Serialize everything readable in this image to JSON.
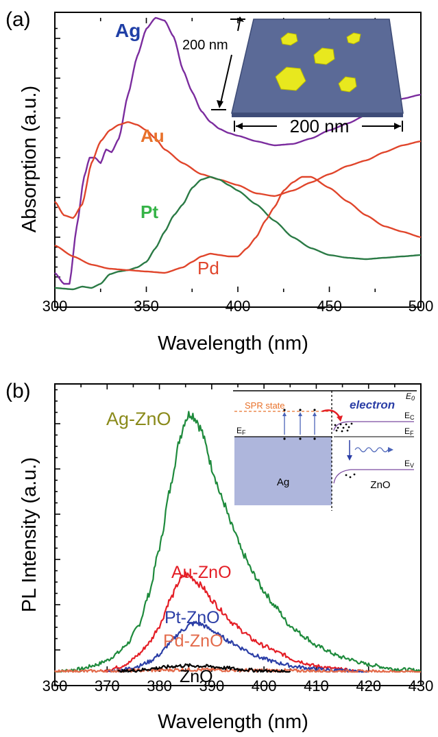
{
  "chart_data": [
    {
      "panel": "(a)",
      "type": "line",
      "xlabel": "Wavelength (nm)",
      "ylabel": "Absorption (a.u.)",
      "xlim": [
        300,
        500
      ],
      "ylim": [
        0,
        1
      ],
      "xticks": [
        "300",
        "350",
        "400",
        "450",
        "500"
      ],
      "series": [
        {
          "name": "Ag",
          "color": "#7b2c9e",
          "label_color": "#1f3fa6",
          "x": [
            300,
            305,
            308,
            312,
            316,
            319,
            322,
            325,
            328,
            331,
            335,
            340,
            345,
            350,
            355,
            360,
            365,
            370,
            375,
            380,
            385,
            390,
            395,
            400,
            410,
            420,
            430,
            440,
            450,
            460,
            470,
            480,
            490,
            500
          ],
          "y": [
            0.07,
            0.03,
            0.03,
            0.24,
            0.42,
            0.49,
            0.49,
            0.47,
            0.52,
            0.51,
            0.56,
            0.72,
            0.86,
            0.96,
            1.0,
            0.99,
            0.93,
            0.81,
            0.73,
            0.66,
            0.62,
            0.595,
            0.58,
            0.57,
            0.55,
            0.535,
            0.54,
            0.56,
            0.59,
            0.615,
            0.645,
            0.675,
            0.705,
            0.72
          ]
        },
        {
          "name": "Au",
          "color": "#e0452b",
          "label_color": "#e8712a",
          "x": [
            300,
            305,
            310,
            315,
            320,
            325,
            330,
            335,
            340,
            345,
            350,
            355,
            360,
            370,
            380,
            390,
            400,
            410,
            420,
            430,
            440,
            450,
            460,
            470,
            480,
            490,
            500
          ],
          "y": [
            0.33,
            0.28,
            0.27,
            0.32,
            0.47,
            0.55,
            0.59,
            0.61,
            0.62,
            0.61,
            0.59,
            0.56,
            0.52,
            0.47,
            0.43,
            0.41,
            0.39,
            0.36,
            0.35,
            0.37,
            0.4,
            0.43,
            0.46,
            0.48,
            0.51,
            0.535,
            0.55
          ]
        },
        {
          "name": "Pt",
          "color": "#2a7a45",
          "label_color": "#35b347",
          "x": [
            300,
            310,
            315,
            320,
            325,
            330,
            335,
            340,
            345,
            350,
            355,
            360,
            365,
            370,
            375,
            380,
            385,
            390,
            395,
            400,
            410,
            420,
            430,
            440,
            450,
            460,
            470,
            480,
            490,
            500
          ],
          "y": [
            0.015,
            0.01,
            0.02,
            0.015,
            0.03,
            0.065,
            0.075,
            0.08,
            0.09,
            0.11,
            0.16,
            0.22,
            0.28,
            0.32,
            0.38,
            0.41,
            0.42,
            0.41,
            0.39,
            0.37,
            0.32,
            0.26,
            0.2,
            0.16,
            0.135,
            0.125,
            0.12,
            0.125,
            0.13,
            0.135
          ]
        },
        {
          "name": "Pd",
          "color": "#e0452b",
          "label_color": "#e0452b",
          "x": [
            300,
            310,
            320,
            330,
            340,
            350,
            360,
            370,
            375,
            380,
            385,
            390,
            395,
            400,
            405,
            410,
            415,
            420,
            425,
            430,
            435,
            440,
            450,
            460,
            470,
            480,
            490,
            500
          ],
          "y": [
            0.17,
            0.13,
            0.1,
            0.085,
            0.08,
            0.075,
            0.07,
            0.09,
            0.11,
            0.13,
            0.14,
            0.135,
            0.13,
            0.13,
            0.16,
            0.2,
            0.26,
            0.31,
            0.37,
            0.4,
            0.42,
            0.42,
            0.38,
            0.33,
            0.28,
            0.24,
            0.22,
            0.2
          ]
        }
      ],
      "inset": {
        "width_label": "200 nm",
        "height_label": "200 nm"
      }
    },
    {
      "panel": "(b)",
      "type": "line",
      "xlabel": "Wavelength (nm)",
      "ylabel": "PL Intensity (a.u.)",
      "xlim": [
        360,
        430
      ],
      "ylim": [
        0,
        1
      ],
      "xticks": [
        "360",
        "370",
        "380",
        "390",
        "400",
        "410",
        "420",
        "430"
      ],
      "series": [
        {
          "name": "Ag-ZnO",
          "color": "#1e8a3c",
          "label_color": "#8a8a1a",
          "x": [
            360,
            365,
            368,
            370,
            372,
            374,
            376,
            378,
            380,
            382,
            383,
            384,
            385,
            386,
            387,
            388,
            389,
            390,
            392,
            394,
            396,
            398,
            400,
            402,
            405,
            408,
            410,
            415,
            420,
            425,
            430
          ],
          "y": [
            0.0,
            0.01,
            0.025,
            0.04,
            0.065,
            0.1,
            0.16,
            0.27,
            0.43,
            0.63,
            0.73,
            0.82,
            0.88,
            0.9,
            0.88,
            0.84,
            0.78,
            0.71,
            0.6,
            0.5,
            0.41,
            0.34,
            0.28,
            0.23,
            0.16,
            0.12,
            0.09,
            0.05,
            0.025,
            0.01,
            0.005
          ]
        },
        {
          "name": "Au-ZnO",
          "color": "#e41e26",
          "label_color": "#e41e26",
          "x": [
            369,
            372,
            374,
            376,
            378,
            380,
            382,
            384,
            385,
            386,
            388,
            390,
            392,
            394,
            396,
            398,
            400,
            403,
            406,
            410,
            414,
            418
          ],
          "y": [
            0.0,
            0.015,
            0.03,
            0.06,
            0.1,
            0.16,
            0.25,
            0.32,
            0.34,
            0.33,
            0.3,
            0.25,
            0.21,
            0.17,
            0.14,
            0.11,
            0.09,
            0.065,
            0.04,
            0.02,
            0.01,
            0.0
          ]
        },
        {
          "name": "Pt-ZnO",
          "color": "#2b3ea6",
          "label_color": "#2b3ea6",
          "x": [
            370,
            373,
            376,
            378,
            380,
            382,
            384,
            386,
            387,
            388,
            390,
            392,
            394,
            396,
            398,
            400,
            403,
            406,
            410,
            415,
            420
          ],
          "y": [
            0.0,
            0.008,
            0.02,
            0.035,
            0.06,
            0.1,
            0.14,
            0.165,
            0.17,
            0.165,
            0.145,
            0.12,
            0.1,
            0.08,
            0.06,
            0.045,
            0.03,
            0.018,
            0.01,
            0.004,
            0.0
          ]
        },
        {
          "name": "Pd-ZnO",
          "color": "#e36a4a",
          "label_color": "#e36a4a",
          "x": [
            360,
            370,
            380,
            385,
            390,
            400,
            410,
            420,
            430
          ],
          "y": [
            0.0,
            0.003,
            0.006,
            0.008,
            0.007,
            0.005,
            0.003,
            0.001,
            0.0
          ]
        },
        {
          "name": "ZnO",
          "color": "#000000",
          "label_color": "#000000",
          "x": [
            372,
            376,
            380,
            383,
            385,
            387,
            390,
            393,
            396,
            400,
            405
          ],
          "y": [
            0.0,
            0.006,
            0.014,
            0.02,
            0.022,
            0.021,
            0.018,
            0.013,
            0.008,
            0.003,
            0.0
          ]
        }
      ],
      "inset": {
        "spr_state": "SPR state",
        "electron": "electron",
        "e0": "E",
        "e0_sub": "0",
        "ec": "E",
        "ec_sub": "C",
        "ef_left": "E",
        "ef_left_sub": "F",
        "ef_right": "E",
        "ef_right_sub": "F",
        "ev": "E",
        "ev_sub": "V",
        "ag": "Ag",
        "zno": "ZnO"
      }
    }
  ]
}
